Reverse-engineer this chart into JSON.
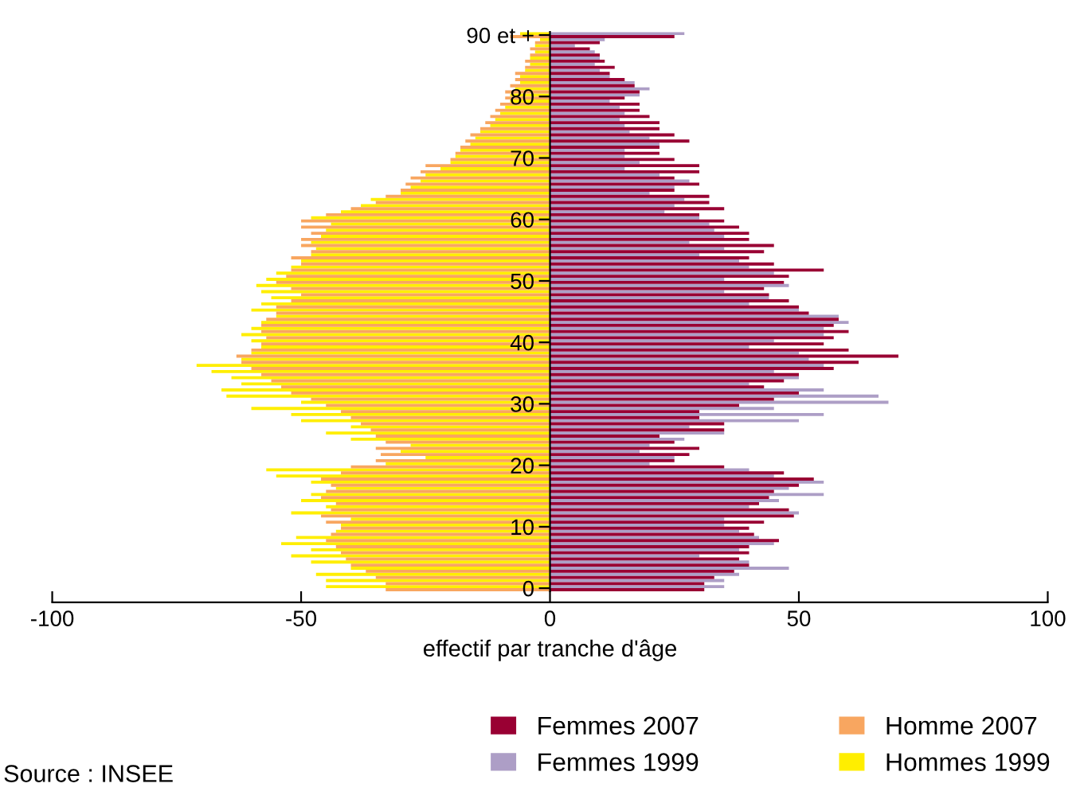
{
  "chart_data": {
    "type": "bar",
    "orientation": "horizontal",
    "categories": [
      "90 et +",
      null,
      null,
      null,
      null,
      null,
      null,
      null,
      null,
      null,
      "80",
      null,
      null,
      null,
      null,
      null,
      null,
      null,
      null,
      null,
      "70",
      null,
      null,
      null,
      null,
      null,
      null,
      null,
      null,
      null,
      "60",
      null,
      null,
      null,
      null,
      null,
      null,
      null,
      null,
      null,
      "50",
      null,
      null,
      null,
      null,
      null,
      null,
      null,
      null,
      null,
      "40",
      null,
      null,
      null,
      null,
      null,
      null,
      null,
      null,
      null,
      "30",
      null,
      null,
      null,
      null,
      null,
      null,
      null,
      null,
      null,
      "20",
      null,
      null,
      null,
      null,
      null,
      null,
      null,
      null,
      null,
      "10",
      null,
      null,
      null,
      null,
      null,
      null,
      null,
      null,
      null,
      "0"
    ],
    "series": [
      {
        "name": "Femmes 1999",
        "color": "#ad9ec6",
        "values": [
          27,
          11,
          5,
          9,
          10,
          9,
          10,
          12,
          17,
          20,
          18,
          12,
          14,
          15,
          14,
          15,
          16,
          20,
          22,
          15,
          15,
          18,
          15,
          22,
          28,
          25,
          20,
          27,
          25,
          23,
          30,
          32,
          33,
          35,
          28,
          35,
          30,
          38,
          40,
          45,
          35,
          48,
          35,
          44,
          40,
          50,
          58,
          60,
          55,
          55,
          45,
          40,
          50,
          52,
          55,
          45,
          50,
          40,
          55,
          66,
          68,
          45,
          55,
          50,
          28,
          35,
          27,
          20,
          18,
          25,
          20,
          40,
          45,
          55,
          48,
          55,
          46,
          40,
          50,
          35,
          35,
          38,
          42,
          45,
          38,
          30,
          40,
          48,
          38,
          35,
          35
        ]
      },
      {
        "name": "Hommes 1999",
        "color": "#ffee00",
        "values": [
          -6,
          -2,
          -3,
          -3,
          -4,
          -4,
          -5,
          -6,
          -6,
          -7,
          -8,
          -8,
          -9,
          -10,
          -11,
          -12,
          -14,
          -15,
          -16,
          -18,
          -19,
          -20,
          -22,
          -25,
          -26,
          -28,
          -30,
          -36,
          -38,
          -42,
          -48,
          -44,
          -45,
          -46,
          -48,
          -47,
          -48,
          -50,
          -52,
          -55,
          -57,
          -59,
          -58,
          -56,
          -58,
          -60,
          -55,
          -58,
          -60,
          -62,
          -60,
          -58,
          -60,
          -62,
          -71,
          -68,
          -64,
          -62,
          -66,
          -65,
          -50,
          -60,
          -52,
          -50,
          -40,
          -45,
          -40,
          -28,
          -30,
          -25,
          -33,
          -57,
          -55,
          -48,
          -43,
          -48,
          -50,
          -45,
          -52,
          -40,
          -42,
          -43,
          -51,
          -54,
          -48,
          -52,
          -48,
          -40,
          -47,
          -45,
          -45
        ]
      },
      {
        "name": "Femmes 2007",
        "color": "#990033",
        "values": [
          25,
          10,
          8,
          10,
          11,
          13,
          12,
          15,
          17,
          18,
          15,
          18,
          18,
          20,
          22,
          22,
          25,
          28,
          22,
          22,
          25,
          30,
          30,
          25,
          30,
          25,
          32,
          32,
          35,
          30,
          35,
          38,
          40,
          40,
          45,
          43,
          40,
          45,
          55,
          48,
          47,
          43,
          44,
          48,
          50,
          52,
          58,
          57,
          60,
          57,
          55,
          60,
          70,
          62,
          57,
          50,
          47,
          43,
          50,
          45,
          38,
          30,
          30,
          35,
          35,
          22,
          25,
          30,
          28,
          25,
          35,
          47,
          53,
          50,
          45,
          44,
          42,
          48,
          49,
          43,
          40,
          41,
          46,
          40,
          40,
          38,
          40,
          37,
          33,
          31,
          31
        ]
      },
      {
        "name": "Homme 2007",
        "color": "#f8a660",
        "values": [
          -8,
          -3,
          -4,
          -4,
          -5,
          -5,
          -7,
          -7,
          -8,
          -9,
          -9,
          -10,
          -11,
          -12,
          -13,
          -14,
          -16,
          -17,
          -18,
          -19,
          -20,
          -25,
          -26,
          -28,
          -29,
          -30,
          -33,
          -35,
          -40,
          -45,
          -50,
          -50,
          -48,
          -50,
          -50,
          -48,
          -52,
          -50,
          -52,
          -53,
          -55,
          -52,
          -50,
          -52,
          -55,
          -55,
          -57,
          -58,
          -58,
          -57,
          -58,
          -60,
          -63,
          -62,
          -60,
          -58,
          -56,
          -54,
          -52,
          -48,
          -45,
          -42,
          -40,
          -38,
          -36,
          -35,
          -33,
          -35,
          -34,
          -35,
          -40,
          -42,
          -46,
          -44,
          -45,
          -46,
          -43,
          -44,
          -46,
          -45,
          -42,
          -44,
          -45,
          -43,
          -42,
          -41,
          -40,
          -37,
          -35,
          -33,
          -33
        ]
      }
    ],
    "xlim": [
      -100,
      100
    ],
    "xticks": [
      {
        "value": -100,
        "label": "-100"
      },
      {
        "value": -50,
        "label": "-50"
      },
      0,
      50,
      100
    ],
    "xlabel": "effectif par tranche d'âge",
    "legend": "bottom",
    "grid": false,
    "annotations": [
      "Source : INSEE"
    ]
  }
}
